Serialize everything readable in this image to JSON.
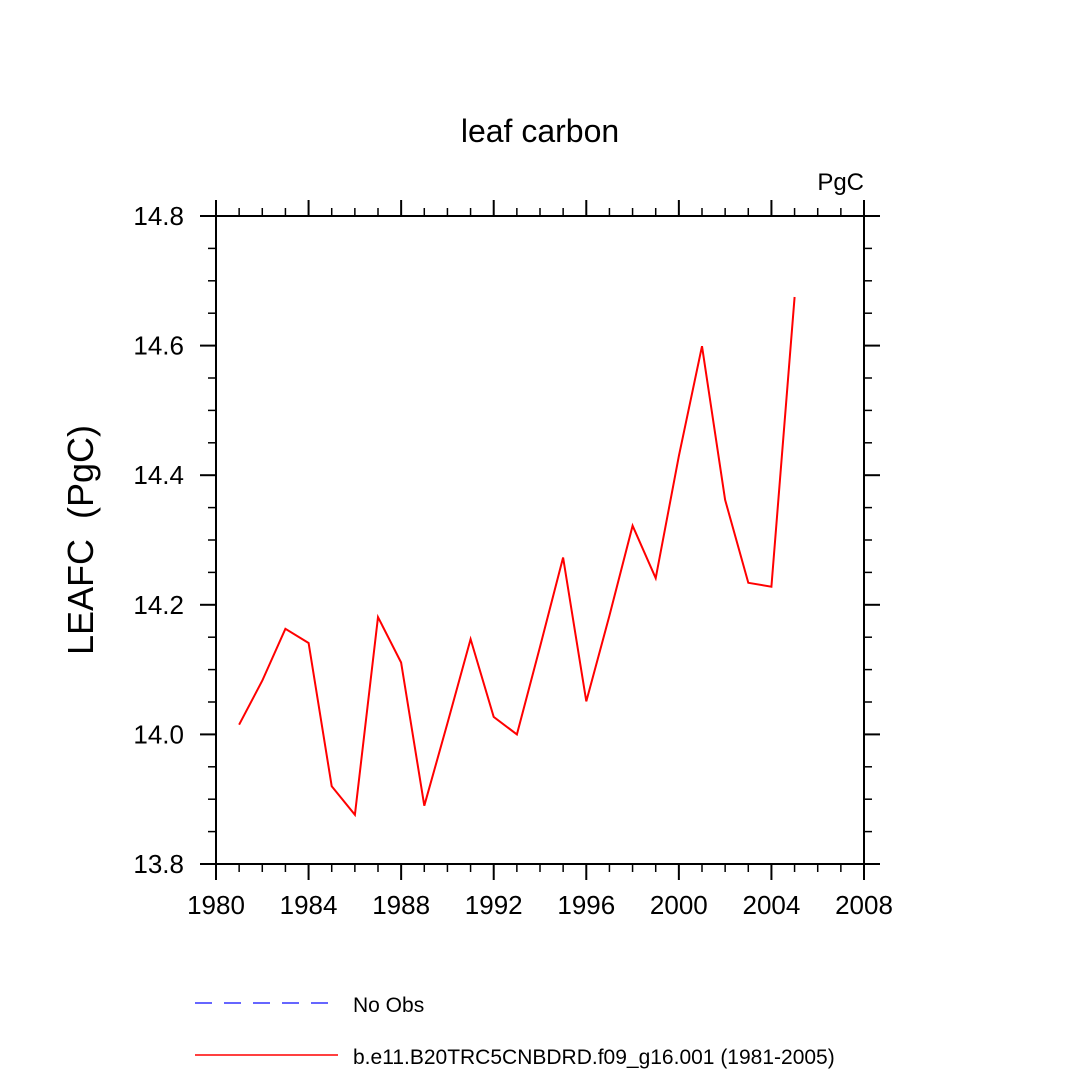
{
  "chart_data": {
    "type": "line",
    "title": "leaf carbon",
    "units_label": "PgC",
    "xlabel": "",
    "ylabel": "LEAFC  (PgC)",
    "xlim": [
      1980,
      2008
    ],
    "ylim": [
      13.8,
      14.8
    ],
    "x_ticks": [
      1980,
      1984,
      1988,
      1992,
      1996,
      2000,
      2004,
      2008
    ],
    "y_ticks": [
      "13.8",
      "14.0",
      "14.2",
      "14.4",
      "14.6",
      "14.8"
    ],
    "series": [
      {
        "name": "b.e11.B20TRC5CNBDRD.f09_g16.001 (1981-2005)",
        "color": "#ff0000",
        "dash": "solid",
        "x": [
          1981,
          1982,
          1983,
          1984,
          1985,
          1986,
          1987,
          1988,
          1989,
          1990,
          1991,
          1992,
          1993,
          1994,
          1995,
          1996,
          1997,
          1998,
          1999,
          2000,
          2001,
          2002,
          2003,
          2004,
          2005
        ],
        "values": [
          14.015,
          14.083,
          14.163,
          14.141,
          13.92,
          13.876,
          14.181,
          14.111,
          13.89,
          14.017,
          14.147,
          14.027,
          14.0,
          14.135,
          14.273,
          14.051,
          14.183,
          14.322,
          14.241,
          14.43,
          14.599,
          14.362,
          14.234,
          14.228,
          14.675
        ]
      }
    ],
    "legend": [
      {
        "label": "No Obs",
        "color": "#3333ff",
        "dash": "dashed"
      },
      {
        "label": "b.e11.B20TRC5CNBDRD.f09_g16.001 (1981-2005)",
        "color": "#ff0000",
        "dash": "solid"
      }
    ]
  }
}
